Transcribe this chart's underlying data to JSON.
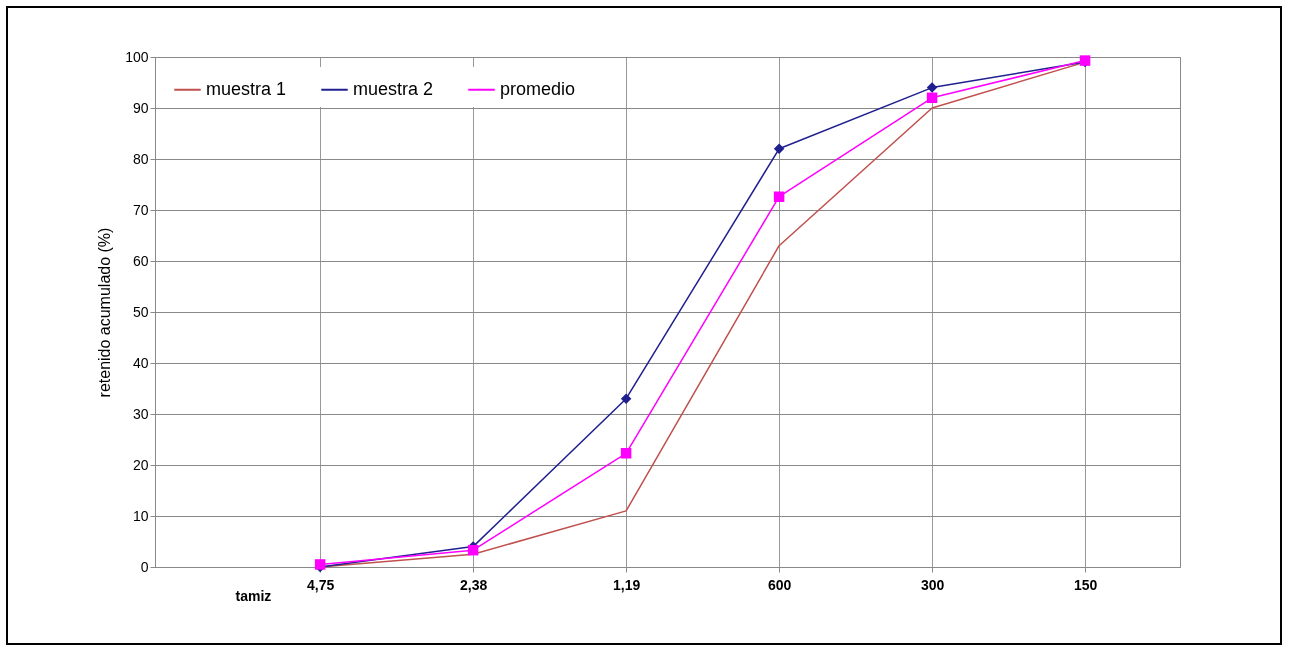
{
  "chart_data": {
    "type": "line",
    "xlabel": "tamiz",
    "ylabel": "retenido  acumulado (%)",
    "categories": [
      "4,75",
      "2,38",
      "1,19",
      "600",
      "300",
      "150"
    ],
    "series": [
      {
        "name": "muestra 1",
        "color": "#c0504d",
        "marker": "none",
        "values": [
          0,
          2.5,
          11,
          63,
          90,
          99
        ]
      },
      {
        "name": "muestra 2",
        "color": "#1f1f8f",
        "marker": "diamond",
        "values": [
          0,
          4,
          33,
          82,
          94,
          99
        ]
      },
      {
        "name": "promedio",
        "color": "#ff00ff",
        "marker": "square",
        "values": [
          0.5,
          3.3,
          22.3,
          72.6,
          92,
          99.3
        ]
      }
    ],
    "ylim": [
      0,
      100
    ],
    "yticks": [
      0,
      10,
      20,
      30,
      40,
      50,
      60,
      70,
      80,
      90,
      100
    ],
    "grid": true,
    "legend": "top left",
    "line_style": "solid"
  }
}
